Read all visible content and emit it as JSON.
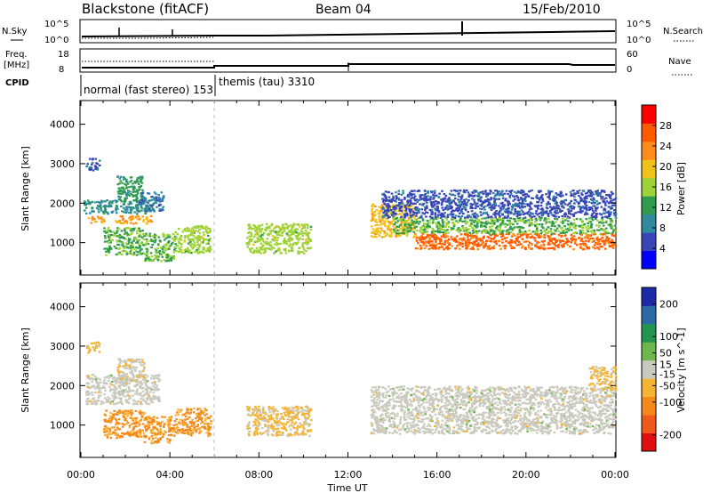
{
  "header": {
    "station": "Blackstone (fitACF)",
    "beam": "Beam 04",
    "date": "15/Feb/2010"
  },
  "panels": {
    "nsky": {
      "label": "N.Sky",
      "right_label": "N.Search",
      "left_ticks": [
        "10^5",
        "10^0"
      ],
      "right_ticks": [
        "10^5",
        "10^0"
      ]
    },
    "freq": {
      "label_lines": [
        "Freq.",
        "[MHz]"
      ],
      "right_label": "Nave",
      "left_ticks": [
        "18",
        "8"
      ],
      "right_ticks": [
        "60",
        "0"
      ]
    },
    "cpid": {
      "label": "CPID",
      "modes": [
        "normal (fast stereo) 153",
        "themis (tau) 3310"
      ]
    }
  },
  "x_axis": {
    "label": "Time UT",
    "ticks": [
      "00:00",
      "04:00",
      "08:00",
      "12:00",
      "16:00",
      "20:00",
      "00:00"
    ]
  },
  "colors": {
    "power": [
      "#0000ff",
      "#3a46b8",
      "#2f8a9e",
      "#2e9b4e",
      "#9fd236",
      "#f0c21a",
      "#ff8b1a",
      "#ff5a00",
      "#ff0000"
    ],
    "velocity": [
      "#e01010",
      "#ef5a1a",
      "#f5891c",
      "#f6b435",
      "#c9c9bd",
      "#6cb84d",
      "#22964e",
      "#2c6aa6",
      "#1c2aa8"
    ]
  },
  "chart_data": [
    {
      "type": "heatmap",
      "title": "Power",
      "xlabel": "Time UT",
      "ylabel": "Slant Range [km]",
      "xlim": [
        "00:00",
        "24:00"
      ],
      "ylim": [
        180,
        4600
      ],
      "yticks": [
        1000,
        2000,
        3000,
        4000
      ],
      "colorbar": {
        "label": "Power [dB]",
        "range": [
          0,
          32
        ],
        "ticks": [
          4,
          8,
          12,
          16,
          20,
          24,
          28
        ]
      },
      "scatter_regions": [
        {
          "t": [
            0.3,
            1.0
          ],
          "range": [
            1500,
            1700
          ],
          "value": 22
        },
        {
          "t": [
            0.1,
            3.1
          ],
          "range": [
            1750,
            2100
          ],
          "value": 10
        },
        {
          "t": [
            1.6,
            2.8
          ],
          "range": [
            2050,
            2700
          ],
          "value": 12
        },
        {
          "t": [
            2.6,
            3.7
          ],
          "range": [
            1800,
            2300
          ],
          "value": 8
        },
        {
          "t": [
            1.5,
            3.2
          ],
          "range": [
            1500,
            1700
          ],
          "value": 22
        },
        {
          "t": [
            0.2,
            0.8
          ],
          "range": [
            2850,
            3150
          ],
          "value": 6
        },
        {
          "t": [
            1.0,
            2.8
          ],
          "range": [
            700,
            1400
          ],
          "value": 14
        },
        {
          "t": [
            2.8,
            4.2
          ],
          "range": [
            550,
            1250
          ],
          "value": 14
        },
        {
          "t": [
            4.2,
            5.8
          ],
          "range": [
            750,
            1450
          ],
          "value": 16
        },
        {
          "t": [
            7.4,
            10.3
          ],
          "range": [
            750,
            1500
          ],
          "value": 16
        },
        {
          "t": [
            13.0,
            15.0
          ],
          "range": [
            1150,
            2000
          ],
          "value": 20
        },
        {
          "t": [
            15.0,
            24.0
          ],
          "range": [
            850,
            1250
          ],
          "value": 26
        },
        {
          "t": [
            14.0,
            24.0
          ],
          "range": [
            1250,
            1650
          ],
          "value": 14
        },
        {
          "t": [
            13.5,
            24.0
          ],
          "range": [
            1650,
            2350
          ],
          "value": 6
        }
      ]
    },
    {
      "type": "heatmap",
      "title": "Velocity",
      "xlabel": "Time UT",
      "ylabel": "Slant Range [km]",
      "xlim": [
        "00:00",
        "24:00"
      ],
      "ylim": [
        180,
        4600
      ],
      "yticks": [
        1000,
        2000,
        3000,
        4000
      ],
      "colorbar": {
        "label": "Velocity [m s^-1]",
        "range": [
          -250,
          250
        ],
        "ticks": [
          200,
          100,
          50,
          15,
          -15,
          -50,
          -100,
          -200
        ]
      },
      "scatter_regions": [
        {
          "t": [
            0.2,
            3.5
          ],
          "range": [
            1550,
            2300
          ],
          "value": 0
        },
        {
          "t": [
            1.6,
            2.8
          ],
          "range": [
            2050,
            2700
          ],
          "value": -20
        },
        {
          "t": [
            0.2,
            0.8
          ],
          "range": [
            2850,
            3150
          ],
          "value": -40
        },
        {
          "t": [
            1.0,
            2.8
          ],
          "range": [
            700,
            1400
          ],
          "value": -90
        },
        {
          "t": [
            2.8,
            4.2
          ],
          "range": [
            550,
            1250
          ],
          "value": -90
        },
        {
          "t": [
            4.2,
            5.8
          ],
          "range": [
            750,
            1450
          ],
          "value": -90
        },
        {
          "t": [
            7.4,
            10.3
          ],
          "range": [
            750,
            1500
          ],
          "value": -40
        },
        {
          "t": [
            13.0,
            24.0
          ],
          "range": [
            800,
            2000
          ],
          "value": 0
        },
        {
          "t": [
            22.8,
            24.0
          ],
          "range": [
            1900,
            2500
          ],
          "value": -40
        }
      ]
    }
  ]
}
